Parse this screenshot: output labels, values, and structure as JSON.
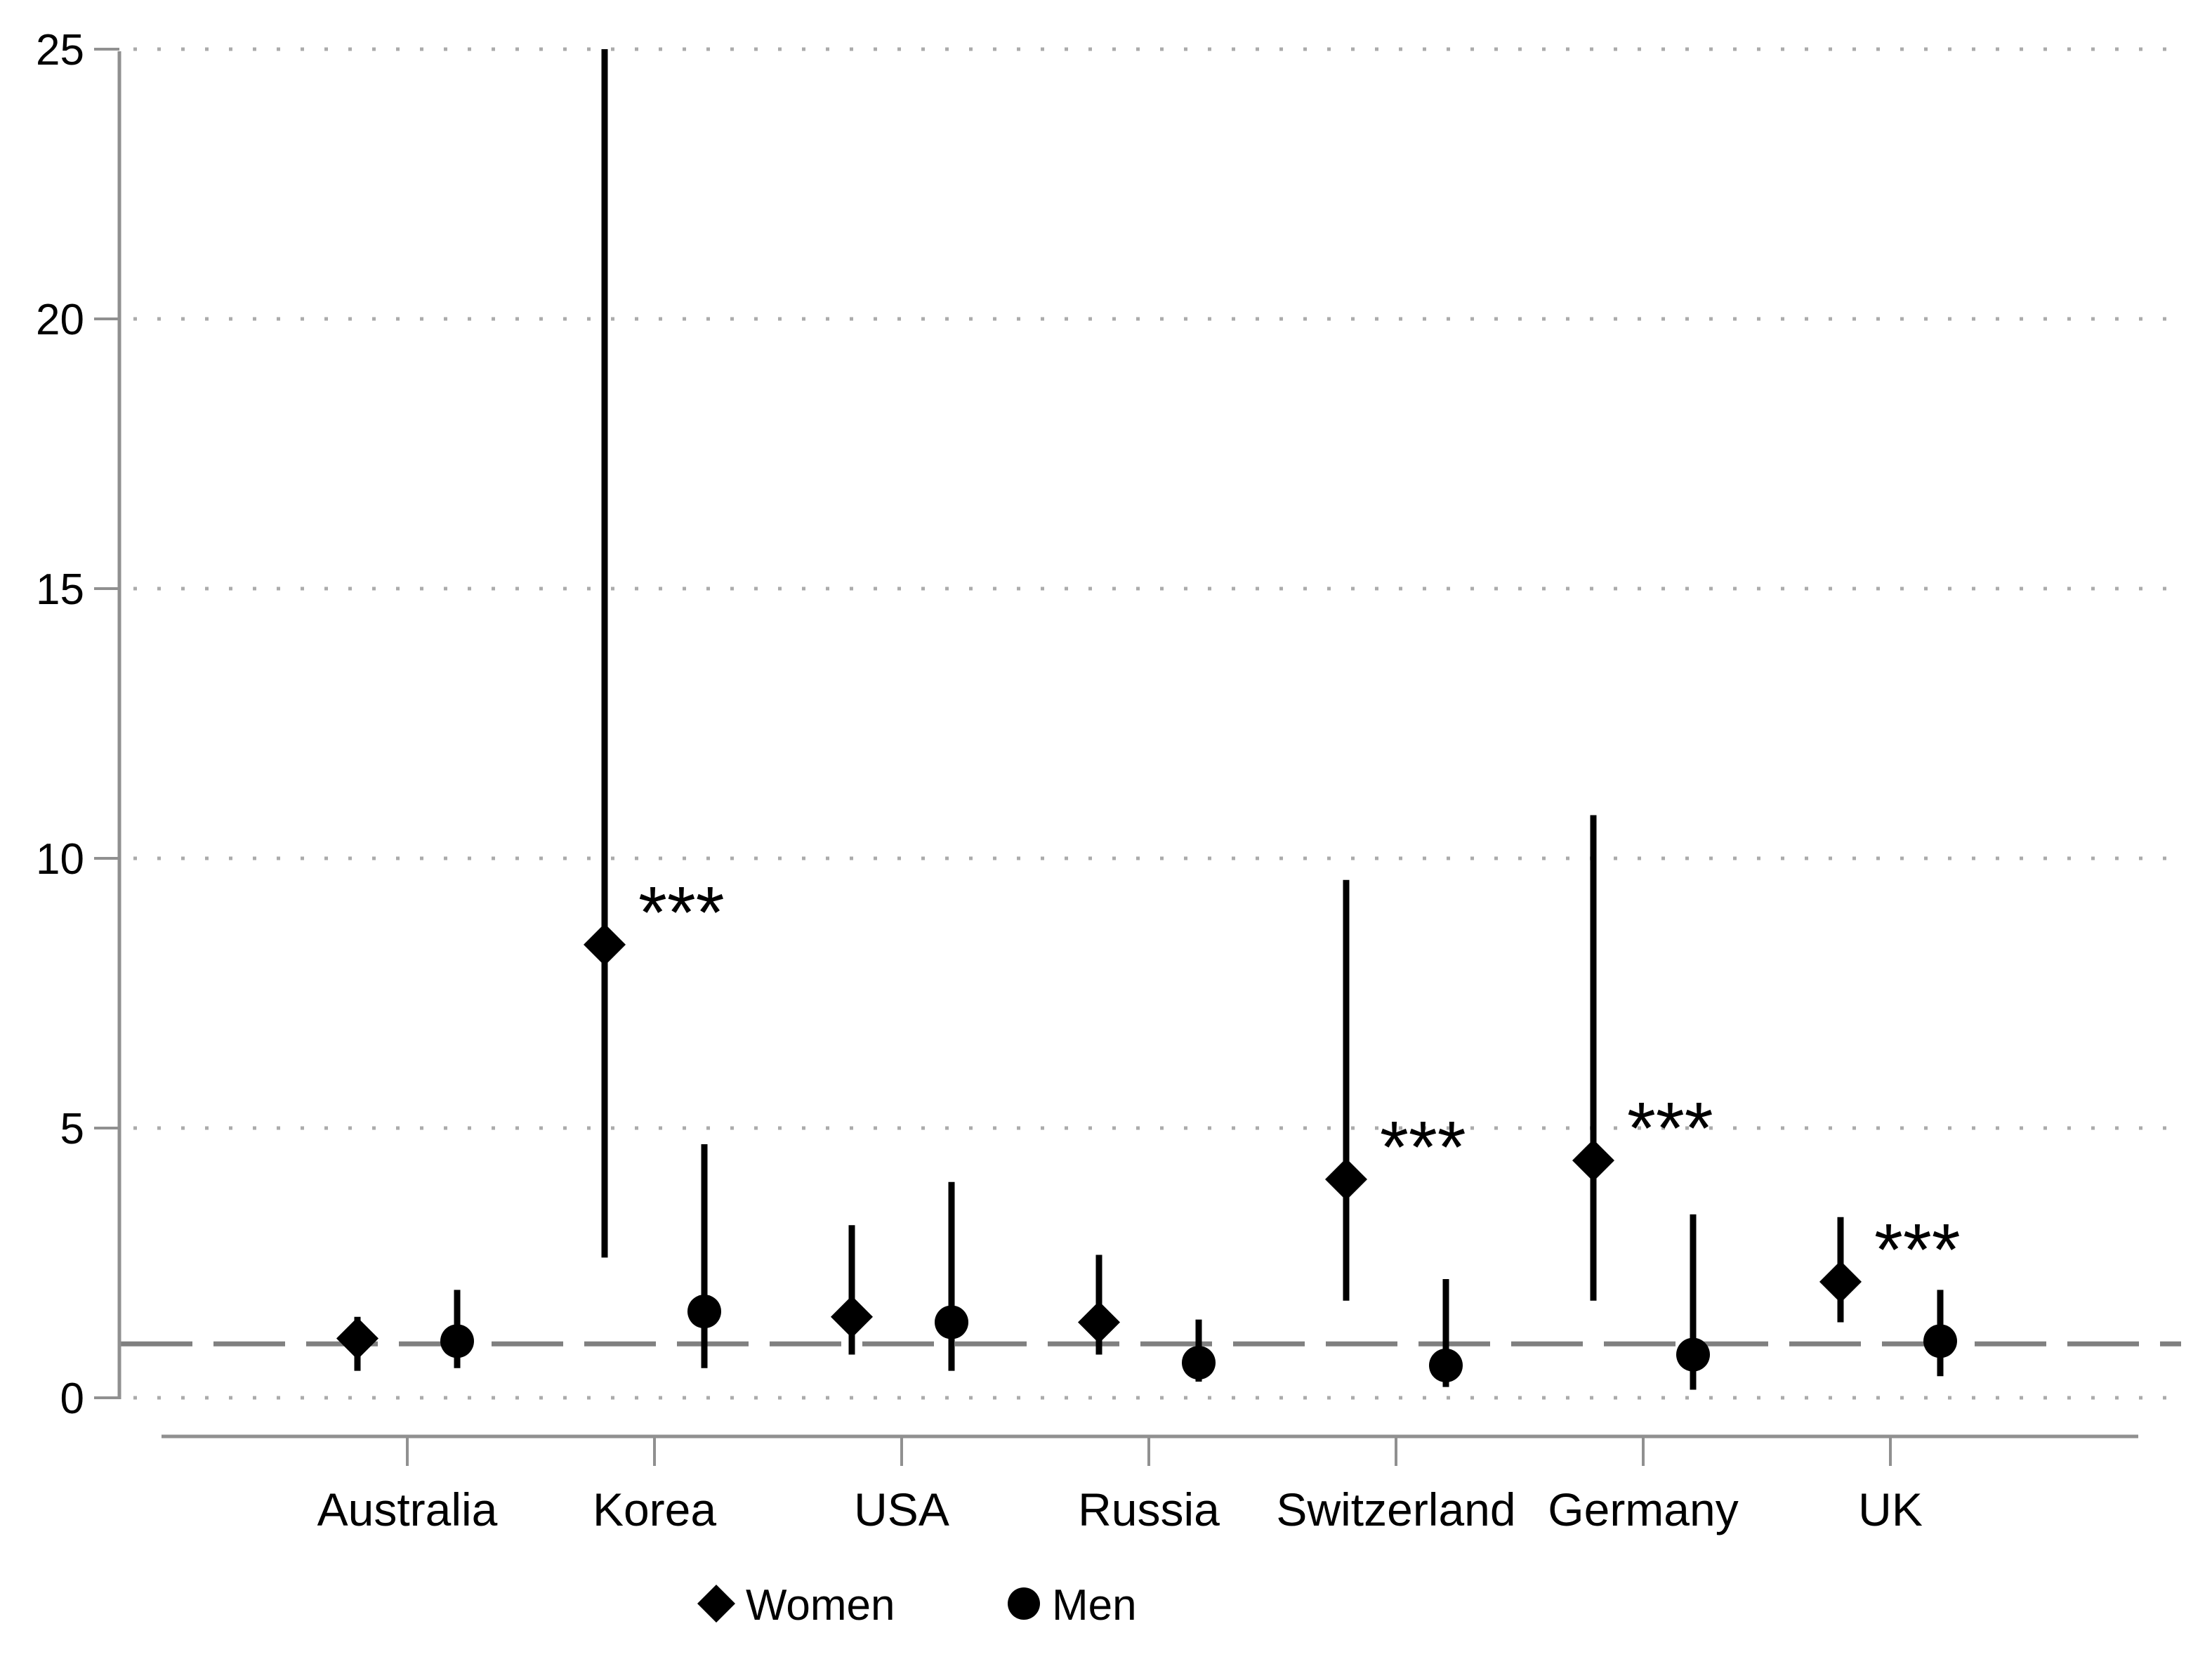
{
  "page": {
    "background_color": "#ffffff",
    "description": "Forest plot of estimates with 95% confidence intervals by country and sex"
  },
  "chart_data": {
    "type": "scatter",
    "subtype": "point-estimates-with-ci",
    "title": "",
    "xlabel": "",
    "ylabel": "",
    "categories": [
      "Australia",
      "Korea",
      "USA",
      "Russia",
      "Switzerland",
      "Germany",
      "UK"
    ],
    "series": [
      {
        "name": "Women",
        "marker": "diamond",
        "values": [
          1.1,
          8.4,
          1.5,
          1.4,
          4.05,
          4.4,
          2.15
        ],
        "ci_low": [
          0.5,
          2.6,
          0.8,
          0.8,
          1.8,
          1.8,
          1.4
        ],
        "ci_high": [
          1.5,
          25.0,
          3.2,
          2.65,
          9.6,
          10.8,
          3.35
        ],
        "significance": [
          "",
          "***",
          "",
          "",
          "***",
          "***",
          "***"
        ]
      },
      {
        "name": "Men",
        "marker": "circle",
        "values": [
          1.05,
          1.6,
          1.4,
          0.65,
          0.6,
          0.8,
          1.05
        ],
        "ci_low": [
          0.55,
          0.55,
          0.5,
          0.3,
          0.2,
          0.15,
          0.4
        ],
        "ci_high": [
          2.0,
          4.7,
          4.0,
          1.45,
          2.2,
          3.4,
          2.0
        ],
        "significance": [
          "",
          "",
          "",
          "",
          "",
          "",
          ""
        ]
      }
    ],
    "ylim": [
      0,
      25
    ],
    "yticks": [
      0,
      5,
      10,
      15,
      20,
      25
    ],
    "reference_line": 1,
    "grid": "dotted-horizontal",
    "legend_position": "bottom-center",
    "legend": [
      {
        "label": "Women",
        "marker": "diamond"
      },
      {
        "label": "Men",
        "marker": "circle"
      }
    ],
    "colors": {
      "marker": "#000000",
      "ci_line": "#000000",
      "axis": "#909090",
      "gridline": "#ababab",
      "reference_line": "#808080",
      "text": "#000000"
    }
  }
}
